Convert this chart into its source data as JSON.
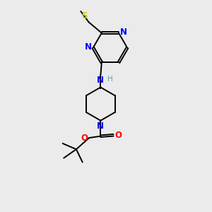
{
  "bg_color": "#ebebeb",
  "bond_color": "#000000",
  "N_color": "#0000ff",
  "O_color": "#ff0000",
  "S_color": "#cccc00",
  "H_color": "#5f9ea0",
  "figsize": [
    3.0,
    3.0
  ],
  "dpi": 100,
  "xlim": [
    0,
    10
  ],
  "ylim": [
    0,
    10
  ]
}
